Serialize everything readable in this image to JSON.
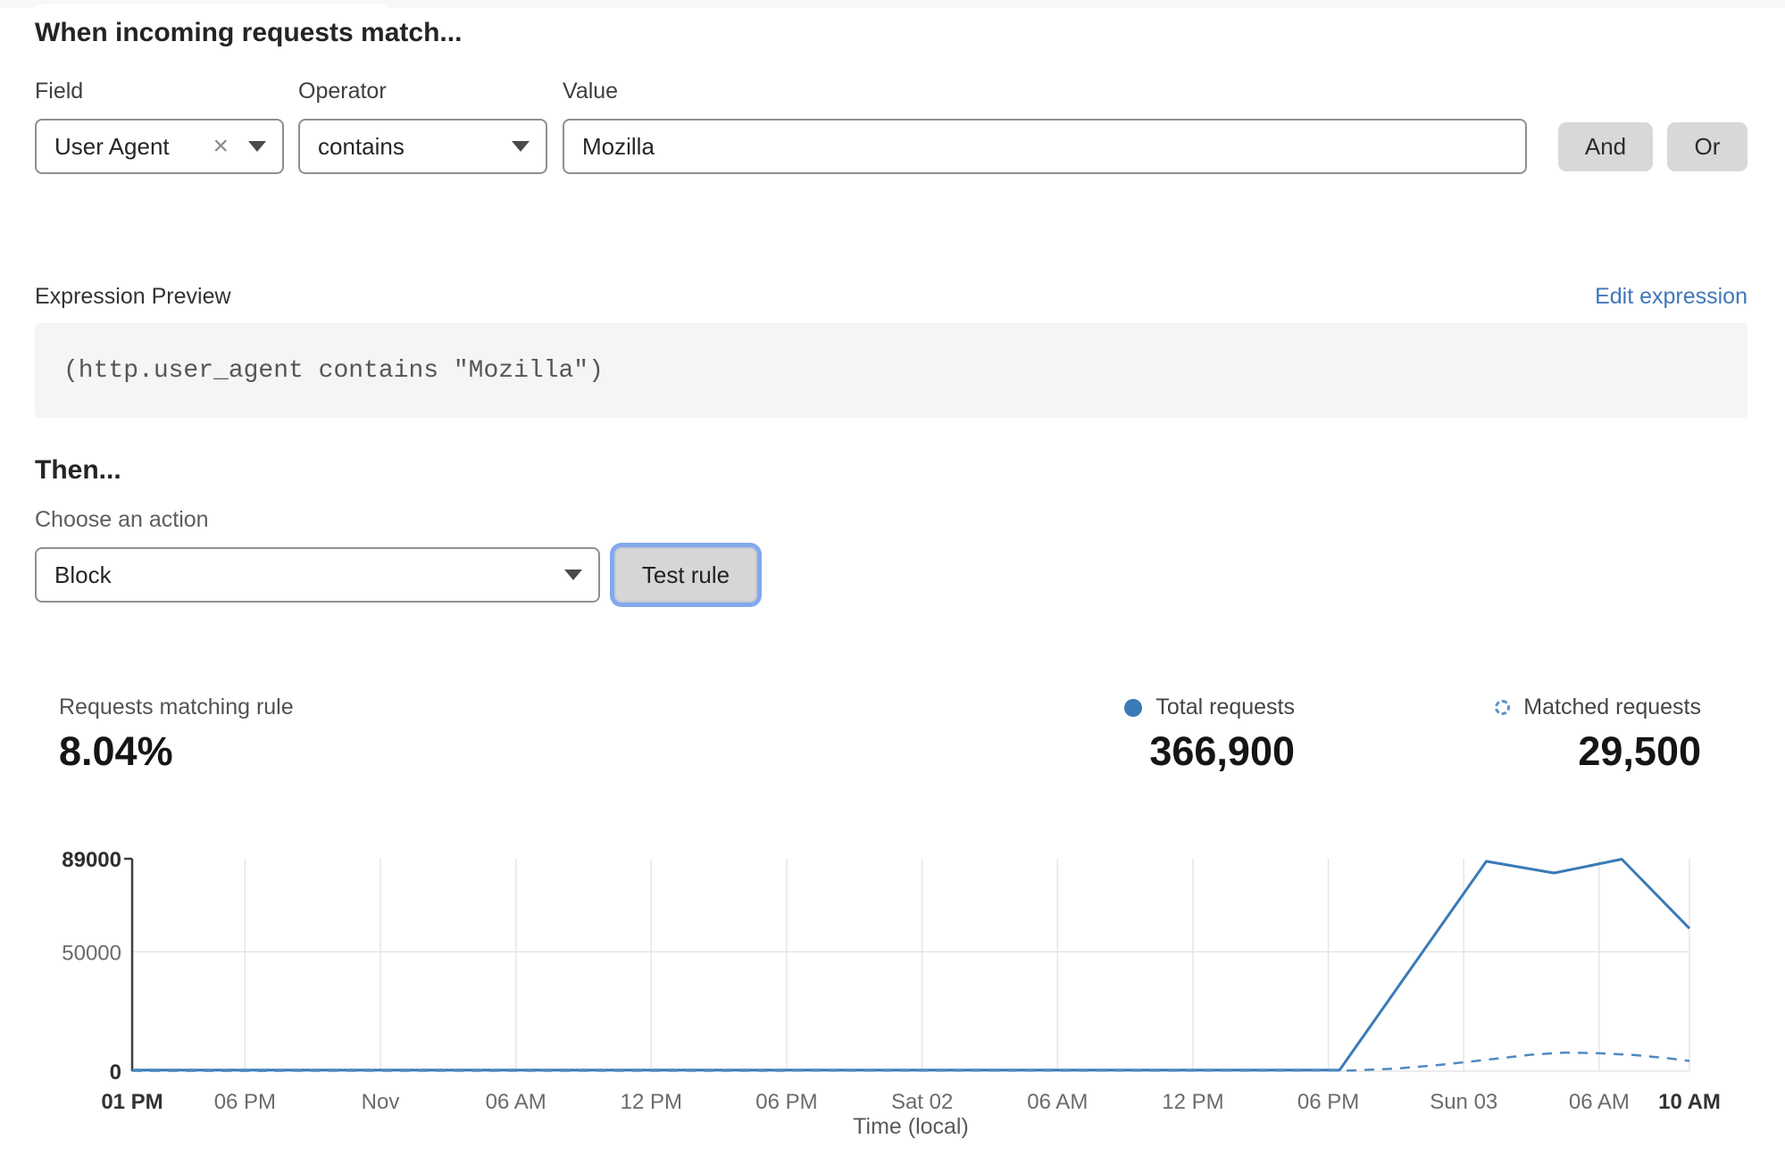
{
  "match_builder": {
    "heading": "When incoming requests match...",
    "field": {
      "label": "Field",
      "value": "User Agent"
    },
    "operator": {
      "label": "Operator",
      "value": "contains"
    },
    "value": {
      "label": "Value",
      "value": "Mozilla"
    },
    "and_label": "And",
    "or_label": "Or"
  },
  "expression": {
    "label": "Expression Preview",
    "edit_link": "Edit expression",
    "code": "(http.user_agent contains \"Mozilla\")"
  },
  "action": {
    "heading": "Then...",
    "choose_label": "Choose an action",
    "selected": "Block",
    "test_button": "Test rule"
  },
  "stats": {
    "matching": {
      "label": "Requests matching rule",
      "value": "8.04%"
    },
    "total": {
      "label": "Total requests",
      "value": "366,900"
    },
    "matched": {
      "label": "Matched requests",
      "value": "29,500"
    }
  },
  "colors": {
    "accent_blue": "#3a7ab6",
    "dashed_blue": "#4f8ac2",
    "link_blue": "#4177b8",
    "button_gray": "#d8d8d8",
    "focus_ring": "#74a0e8",
    "grid": "#e6e6e6",
    "axis": "#3f3f3f",
    "code_bg": "#f5f5f6"
  },
  "chart_data": {
    "type": "line",
    "xlabel": "Time (local)",
    "x_unit": "hours from first tick (01 PM Fri)",
    "x_range": [
      0,
      69
    ],
    "ylim": [
      0,
      89000
    ],
    "grid": true,
    "legend_position": "above-right",
    "x_ticks": [
      {
        "label": "01 PM",
        "h": 0,
        "bold": true
      },
      {
        "label": "06 PM",
        "h": 5,
        "bold": false
      },
      {
        "label": "Nov",
        "h": 11,
        "bold": false
      },
      {
        "label": "06 AM",
        "h": 17,
        "bold": false
      },
      {
        "label": "12 PM",
        "h": 23,
        "bold": false
      },
      {
        "label": "06 PM",
        "h": 29,
        "bold": false
      },
      {
        "label": "Sat 02",
        "h": 35,
        "bold": false
      },
      {
        "label": "06 AM",
        "h": 41,
        "bold": false
      },
      {
        "label": "12 PM",
        "h": 47,
        "bold": false
      },
      {
        "label": "06 PM",
        "h": 53,
        "bold": false
      },
      {
        "label": "Sun 03",
        "h": 59,
        "bold": false
      },
      {
        "label": "06 AM",
        "h": 65,
        "bold": false
      },
      {
        "label": "10 AM",
        "h": 69,
        "bold": true
      }
    ],
    "y_ticks": [
      {
        "label": "89000",
        "v": 89000,
        "bold": true,
        "grid": false
      },
      {
        "label": "50000",
        "v": 50000,
        "bold": false,
        "grid": true
      },
      {
        "label": "0",
        "v": 0,
        "bold": true,
        "grid": true
      }
    ],
    "series": [
      {
        "name": "Total requests",
        "style": "solid",
        "color": "#3a7ab6",
        "width": 3,
        "points": [
          [
            0,
            500
          ],
          [
            53.5,
            500
          ],
          [
            60,
            87900
          ],
          [
            63,
            83000
          ],
          [
            66,
            88800
          ],
          [
            69,
            59800
          ]
        ]
      },
      {
        "name": "Matched requests",
        "style": "dashed",
        "color": "#4f8ac2",
        "width": 2.5,
        "points": [
          [
            0,
            150
          ],
          [
            54,
            250
          ],
          [
            56,
            1100
          ],
          [
            58,
            2700
          ],
          [
            60,
            4800
          ],
          [
            62,
            6900
          ],
          [
            63.5,
            7800
          ],
          [
            65,
            7500
          ],
          [
            66.5,
            6800
          ],
          [
            68,
            5500
          ],
          [
            69,
            4300
          ]
        ]
      }
    ]
  }
}
